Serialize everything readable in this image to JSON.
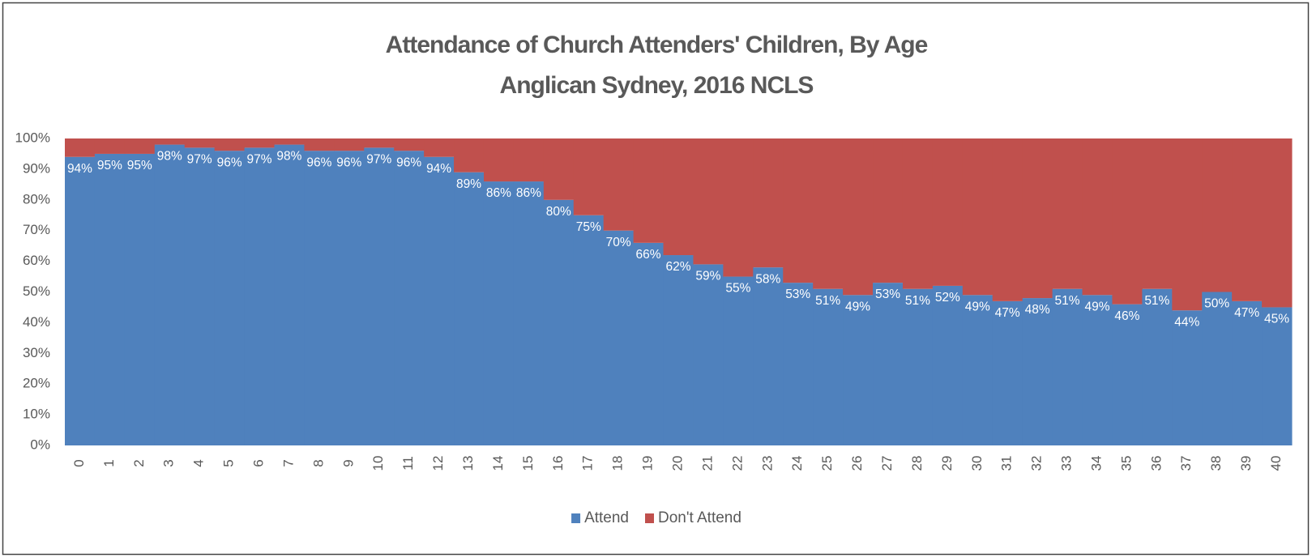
{
  "chart_data": {
    "type": "stacked_bar",
    "title": "Attendance of Church Attenders' Children, By Age",
    "subtitle": "Anglican Sydney, 2016 NCLS",
    "categories": [
      "0",
      "1",
      "2",
      "3",
      "4",
      "5",
      "6",
      "7",
      "8",
      "9",
      "10",
      "11",
      "12",
      "13",
      "14",
      "15",
      "16",
      "17",
      "18",
      "19",
      "20",
      "21",
      "22",
      "23",
      "24",
      "25",
      "26",
      "27",
      "28",
      "29",
      "30",
      "31",
      "32",
      "33",
      "34",
      "35",
      "36",
      "37",
      "38",
      "39",
      "40"
    ],
    "series": [
      {
        "name": "Attend",
        "color": "#4f81bd",
        "values": [
          94,
          95,
          95,
          98,
          97,
          96,
          97,
          98,
          96,
          96,
          97,
          96,
          94,
          89,
          86,
          86,
          80,
          75,
          70,
          66,
          62,
          59,
          55,
          58,
          53,
          51,
          49,
          53,
          51,
          52,
          49,
          47,
          48,
          51,
          49,
          46,
          51,
          44,
          50,
          47,
          45
        ],
        "value_labels": [
          "94%",
          "95%",
          "95%",
          "98%",
          "97%",
          "96%",
          "97%",
          "98%",
          "96%",
          "96%",
          "97%",
          "96%",
          "94%",
          "89%",
          "86%",
          "86%",
          "80%",
          "75%",
          "70%",
          "66%",
          "62%",
          "59%",
          "55%",
          "58%",
          "53%",
          "51%",
          "49%",
          "53%",
          "51%",
          "52%",
          "49%",
          "47%",
          "48%",
          "51%",
          "49%",
          "46%",
          "51%",
          "44%",
          "50%",
          "47%",
          "45%"
        ]
      },
      {
        "name": "Don't Attend",
        "color": "#c0504d",
        "values": [
          6,
          5,
          5,
          2,
          3,
          4,
          3,
          2,
          4,
          4,
          3,
          4,
          6,
          11,
          14,
          14,
          20,
          25,
          30,
          34,
          38,
          41,
          45,
          42,
          47,
          49,
          51,
          47,
          49,
          48,
          51,
          53,
          52,
          49,
          51,
          54,
          49,
          56,
          50,
          53,
          55
        ]
      }
    ],
    "ylim": [
      0,
      100
    ],
    "yticks": [
      {
        "value": 0,
        "label": "0%"
      },
      {
        "value": 10,
        "label": "10%"
      },
      {
        "value": 20,
        "label": "20%"
      },
      {
        "value": 30,
        "label": "30%"
      },
      {
        "value": 40,
        "label": "40%"
      },
      {
        "value": 50,
        "label": "50%"
      },
      {
        "value": 60,
        "label": "60%"
      },
      {
        "value": 70,
        "label": "70%"
      },
      {
        "value": 80,
        "label": "80%"
      },
      {
        "value": 90,
        "label": "90%"
      },
      {
        "value": 100,
        "label": "100%"
      }
    ],
    "grid": false,
    "legend": "bottom"
  }
}
